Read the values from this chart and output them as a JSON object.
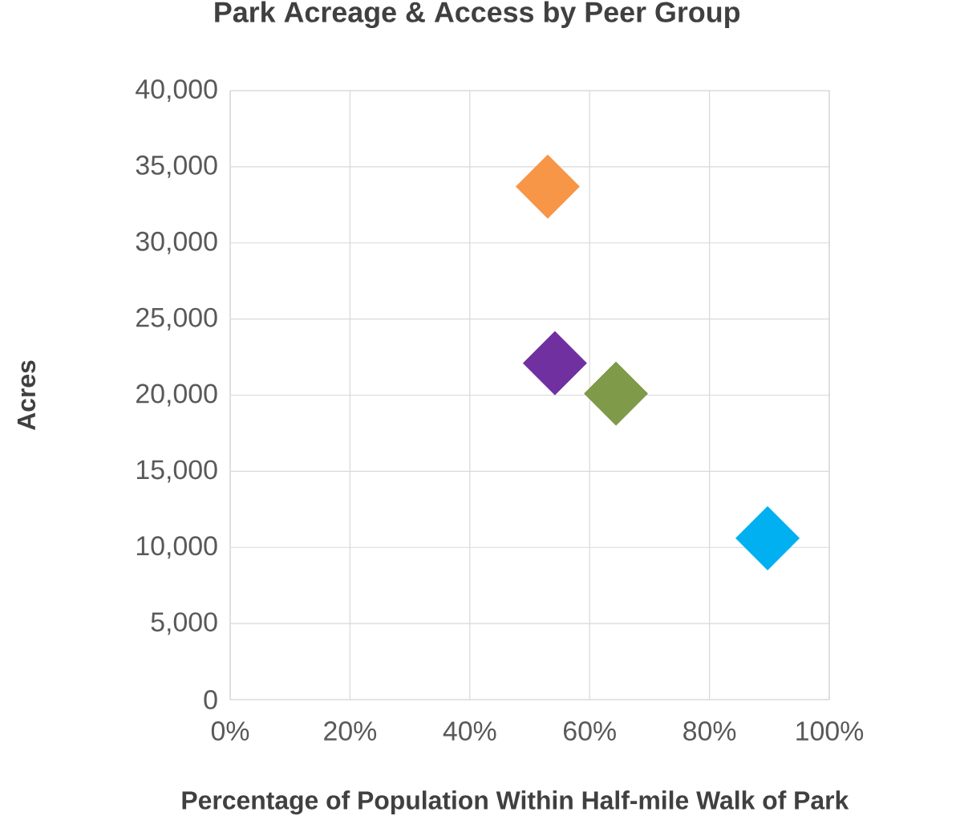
{
  "chart_data": {
    "type": "scatter",
    "title": "Park Acreage & Access by Peer Group",
    "xlabel": "Percentage of Population Within Half-mile Walk of Park",
    "ylabel": "Acres",
    "x": [
      53.0,
      54.2,
      64.4,
      89.7
    ],
    "values": [
      33700,
      22100,
      20100,
      10600
    ],
    "colors": [
      "#f79646",
      "#7030a0",
      "#7f9a48",
      "#00b0f0"
    ],
    "marker": "diamond",
    "grid": true,
    "xlim": [
      0,
      100
    ],
    "xticks": [
      {
        "value": 0,
        "label": "0%"
      },
      {
        "value": 20,
        "label": "20%"
      },
      {
        "value": 40,
        "label": "40%"
      },
      {
        "value": 60,
        "label": "60%"
      },
      {
        "value": 80,
        "label": "80%"
      },
      {
        "value": 100,
        "label": "100%"
      }
    ],
    "ylim": [
      0,
      40000
    ],
    "yticks": [
      {
        "value": 0,
        "label": "0"
      },
      {
        "value": 5000,
        "label": "5,000"
      },
      {
        "value": 10000,
        "label": "10,000"
      },
      {
        "value": 15000,
        "label": "15,000"
      },
      {
        "value": 20000,
        "label": "20,000"
      },
      {
        "value": 25000,
        "label": "25,000"
      },
      {
        "value": 30000,
        "label": "30,000"
      },
      {
        "value": 35000,
        "label": "35,000"
      },
      {
        "value": 40000,
        "label": "40,000"
      }
    ]
  }
}
